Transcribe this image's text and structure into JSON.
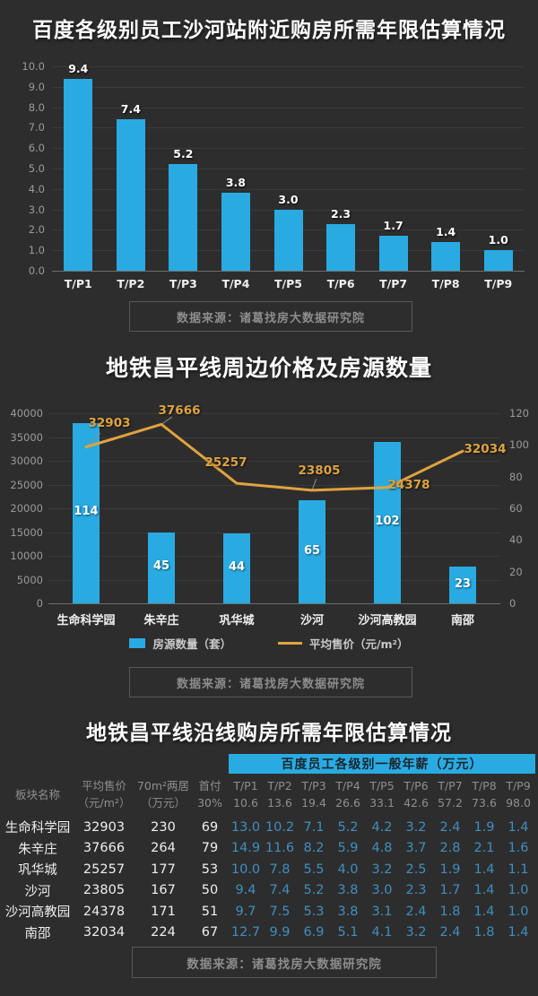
{
  "colors": {
    "background": "#2d2d2d",
    "bar_cyan": "#29abe2",
    "line_orange": "#e0a33e",
    "grid": "#3a3a3a",
    "axis": "#6d6d6d",
    "tick_text": "#9b9b9b",
    "muted_text": "#8d8d8d",
    "table_value_blue": "#3f8fc0"
  },
  "sections": {
    "chart1_title": "百度各级别员工沙河站附近购房所需年限估算情况",
    "chart2_title": "地铁昌平线周边价格及房源数量",
    "table_title": "地铁昌平线沿线购房所需年限估算情况",
    "source_note": "数据来源：诸葛找房大数据研究院"
  },
  "chart_data": [
    {
      "type": "bar",
      "title": "百度各级别员工沙河站附近购房所需年限估算情况",
      "categories": [
        "T/P1",
        "T/P2",
        "T/P3",
        "T/P4",
        "T/P5",
        "T/P6",
        "T/P7",
        "T/P8",
        "T/P9"
      ],
      "values": [
        9.4,
        7.4,
        5.2,
        3.8,
        3.0,
        2.3,
        1.7,
        1.4,
        1.0
      ],
      "ylabel": "",
      "xlabel": "",
      "ylim": [
        0,
        10
      ],
      "ytick_step": 1,
      "grid": true
    },
    {
      "type": "bar+line",
      "title": "地铁昌平线周边价格及房源数量",
      "categories": [
        "生命科学园",
        "朱辛庄",
        "巩华城",
        "沙河",
        "沙河高教园",
        "南邵"
      ],
      "series": [
        {
          "name": "房源数量（套）",
          "type": "bar",
          "axis": "right",
          "values": [
            114,
            45,
            44,
            65,
            102,
            23
          ]
        },
        {
          "name": "平均售价（元/m²）",
          "type": "line",
          "axis": "left",
          "values": [
            32903,
            37666,
            25257,
            23805,
            24378,
            32034
          ]
        }
      ],
      "left_ylim": [
        0,
        40000
      ],
      "left_step": 5000,
      "right_ylim": [
        0,
        120
      ],
      "right_step": 20,
      "grid": true,
      "legend_position": "bottom"
    },
    {
      "type": "table",
      "title": "地铁昌平线沿线购房所需年限估算情况",
      "banner": "百度员工各级别一般年薪（万元）",
      "columns": [
        {
          "label": "板块名称",
          "sub": ""
        },
        {
          "label": "平均售价",
          "sub": "（元/m²）"
        },
        {
          "label": "70m²两居",
          "sub": "（万元）"
        },
        {
          "label": "首付",
          "sub": "30%"
        },
        {
          "label": "T/P1",
          "sub": "10.6"
        },
        {
          "label": "T/P2",
          "sub": "13.6"
        },
        {
          "label": "T/P3",
          "sub": "19.4"
        },
        {
          "label": "T/P4",
          "sub": "26.6"
        },
        {
          "label": "T/P5",
          "sub": "33.1"
        },
        {
          "label": "T/P6",
          "sub": "42.6"
        },
        {
          "label": "T/P7",
          "sub": "57.2"
        },
        {
          "label": "T/P8",
          "sub": "73.6"
        },
        {
          "label": "T/P9",
          "sub": "98.0"
        }
      ],
      "rows": [
        [
          "生命科学园",
          "32903",
          "230",
          "69",
          "13.0",
          "10.2",
          "7.1",
          "5.2",
          "4.2",
          "3.2",
          "2.4",
          "1.9",
          "1.4"
        ],
        [
          "朱辛庄",
          "37666",
          "264",
          "79",
          "14.9",
          "11.6",
          "8.2",
          "5.9",
          "4.8",
          "3.7",
          "2.8",
          "2.1",
          "1.6"
        ],
        [
          "巩华城",
          "25257",
          "177",
          "53",
          "10.0",
          "7.8",
          "5.5",
          "4.0",
          "3.2",
          "2.5",
          "1.9",
          "1.4",
          "1.1"
        ],
        [
          "沙河",
          "23805",
          "167",
          "50",
          "9.4",
          "7.4",
          "5.2",
          "3.8",
          "3.0",
          "2.3",
          "1.7",
          "1.4",
          "1.0"
        ],
        [
          "沙河高教园",
          "24378",
          "171",
          "51",
          "9.7",
          "7.5",
          "5.3",
          "3.8",
          "3.1",
          "2.4",
          "1.8",
          "1.4",
          "1.0"
        ],
        [
          "南邵",
          "32034",
          "224",
          "67",
          "12.7",
          "9.9",
          "6.9",
          "5.1",
          "4.1",
          "3.2",
          "2.4",
          "1.8",
          "1.4"
        ]
      ]
    }
  ]
}
